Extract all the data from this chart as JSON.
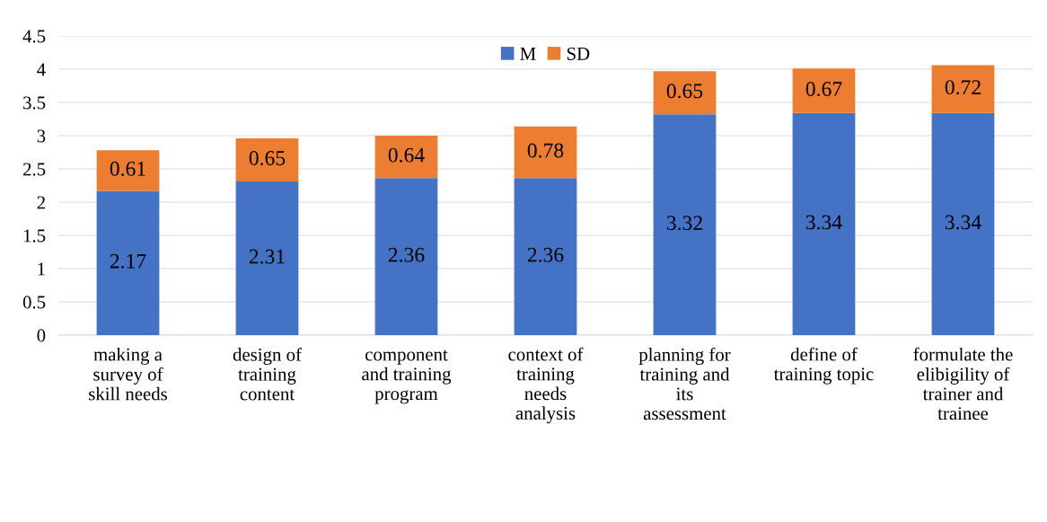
{
  "chart_data": {
    "type": "bar",
    "stacked": true,
    "categories": [
      "making a\nsurvey of\nskill needs",
      "design of\ntraining\ncontent",
      "component\nand training\nprogram",
      "context of\ntraining\nneeds\nanalysis",
      "planning for\ntraining and\nits\nassessment",
      "define of\ntraining topic",
      "formulate the\nelibigility of\ntrainer and\ntrainee"
    ],
    "series": [
      {
        "name": "M",
        "color": "#4472c4",
        "values": [
          2.17,
          2.31,
          2.36,
          2.36,
          3.32,
          3.34,
          3.34
        ]
      },
      {
        "name": "SD",
        "color": "#ed7d31",
        "values": [
          0.61,
          0.65,
          0.64,
          0.78,
          0.65,
          0.67,
          0.72
        ]
      }
    ],
    "ylim": [
      0,
      4.5
    ],
    "yticks": [
      0,
      0.5,
      1,
      1.5,
      2,
      2.5,
      3,
      3.5,
      4,
      4.5
    ],
    "grid": "y",
    "legend": "top",
    "data_labels": true
  }
}
